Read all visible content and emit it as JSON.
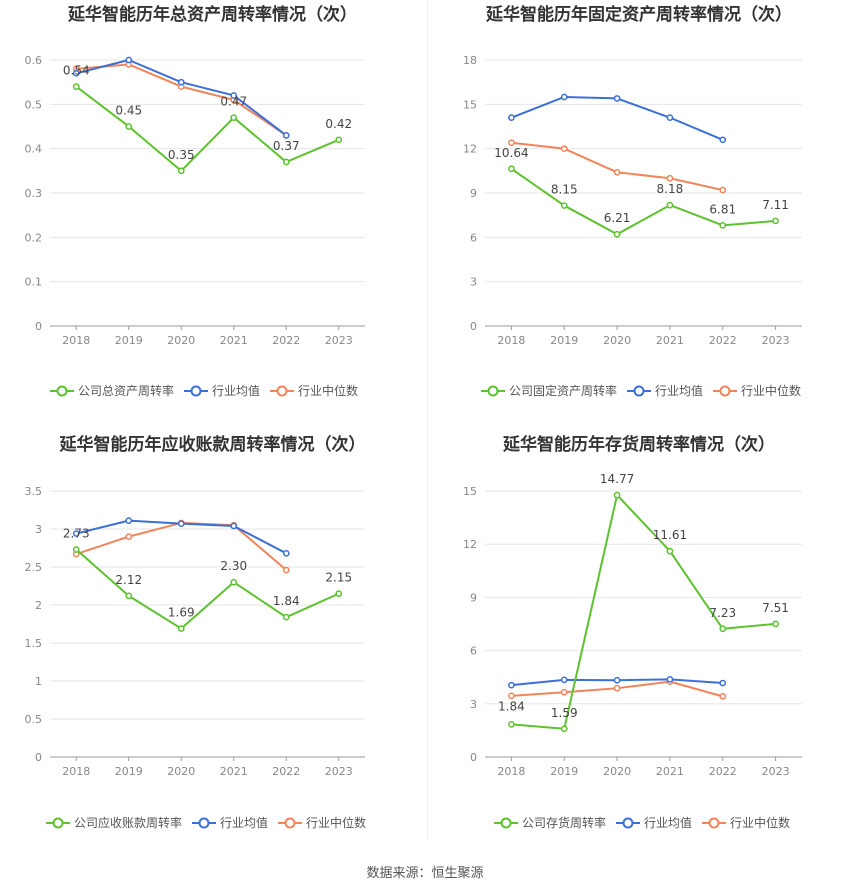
{
  "colors": {
    "company": "#5cc22e",
    "avg": "#3b6fd9",
    "median": "#f0855b",
    "grid": "#e6e6e6",
    "axis": "#999999"
  },
  "source": "数据来源：恒生聚源",
  "chart_data": [
    {
      "type": "line",
      "title": "延华智能历年总资产周转率情况（次）",
      "x": [
        "2018",
        "2019",
        "2020",
        "2021",
        "2022",
        "2023"
      ],
      "ylim": [
        0,
        0.6
      ],
      "yticks": [
        "0",
        "0.1",
        "0.2",
        "0.3",
        "0.4",
        "0.5",
        "0.6"
      ],
      "grid": true,
      "legend": "bottom",
      "series": [
        {
          "name": "公司总资产周转率",
          "values": [
            0.54,
            0.45,
            0.35,
            0.47,
            0.37,
            0.42
          ],
          "labels": [
            "0.54",
            "0.45",
            "0.35",
            "0.47",
            "0.37",
            "0.42"
          ]
        },
        {
          "name": "行业均值",
          "values": [
            0.57,
            0.6,
            0.55,
            0.52,
            0.43,
            null
          ]
        },
        {
          "name": "行业中位数",
          "values": [
            0.58,
            0.59,
            0.54,
            0.51,
            0.43,
            null
          ]
        }
      ]
    },
    {
      "type": "line",
      "title": "延华智能历年固定资产周转率情况（次）",
      "x": [
        "2018",
        "2019",
        "2020",
        "2021",
        "2022",
        "2023"
      ],
      "ylim": [
        0,
        18
      ],
      "yticks": [
        "0",
        "3",
        "6",
        "9",
        "12",
        "15",
        "18"
      ],
      "grid": true,
      "legend": "bottom",
      "series": [
        {
          "name": "公司固定资产周转率",
          "values": [
            10.64,
            8.15,
            6.21,
            8.18,
            6.81,
            7.11
          ],
          "labels": [
            "10.64",
            "8.15",
            "6.21",
            "8.18",
            "6.81",
            "7.11"
          ]
        },
        {
          "name": "行业均值",
          "values": [
            14.1,
            15.5,
            15.4,
            14.1,
            12.6,
            null
          ]
        },
        {
          "name": "行业中位数",
          "values": [
            12.4,
            12.0,
            10.4,
            10.0,
            9.2,
            null
          ]
        }
      ]
    },
    {
      "type": "line",
      "title": "延华智能历年应收账款周转率情况（次）",
      "x": [
        "2018",
        "2019",
        "2020",
        "2021",
        "2022",
        "2023"
      ],
      "ylim": [
        0,
        3.5
      ],
      "yticks": [
        "0",
        "0.5",
        "1",
        "1.5",
        "2",
        "2.5",
        "3",
        "3.5"
      ],
      "grid": true,
      "legend": "bottom",
      "series": [
        {
          "name": "公司应收账款周转率",
          "values": [
            2.73,
            2.12,
            1.69,
            2.3,
            1.84,
            2.15
          ],
          "labels": [
            "2.73",
            "2.12",
            "1.69",
            "2.30",
            "1.84",
            "2.15"
          ]
        },
        {
          "name": "行业均值",
          "values": [
            2.94,
            3.11,
            3.07,
            3.04,
            2.68,
            null
          ]
        },
        {
          "name": "行业中位数",
          "values": [
            2.67,
            2.9,
            3.08,
            3.05,
            2.46,
            null
          ]
        }
      ]
    },
    {
      "type": "line",
      "title": "延华智能历年存货周转率情况（次）",
      "x": [
        "2018",
        "2019",
        "2020",
        "2021",
        "2022",
        "2023"
      ],
      "ylim": [
        0,
        15
      ],
      "yticks": [
        "0",
        "3",
        "6",
        "9",
        "12",
        "15"
      ],
      "grid": true,
      "legend": "bottom",
      "series": [
        {
          "name": "公司存货周转率",
          "values": [
            1.84,
            1.59,
            14.77,
            11.61,
            7.23,
            7.51
          ],
          "labels": [
            "1.84",
            "1.59",
            "14.77",
            "11.61",
            "7.23",
            "7.51"
          ]
        },
        {
          "name": "行业均值",
          "values": [
            4.05,
            4.35,
            4.33,
            4.38,
            4.17,
            null
          ]
        },
        {
          "name": "行业中位数",
          "values": [
            3.45,
            3.65,
            3.88,
            4.25,
            3.42,
            null
          ]
        }
      ]
    }
  ]
}
